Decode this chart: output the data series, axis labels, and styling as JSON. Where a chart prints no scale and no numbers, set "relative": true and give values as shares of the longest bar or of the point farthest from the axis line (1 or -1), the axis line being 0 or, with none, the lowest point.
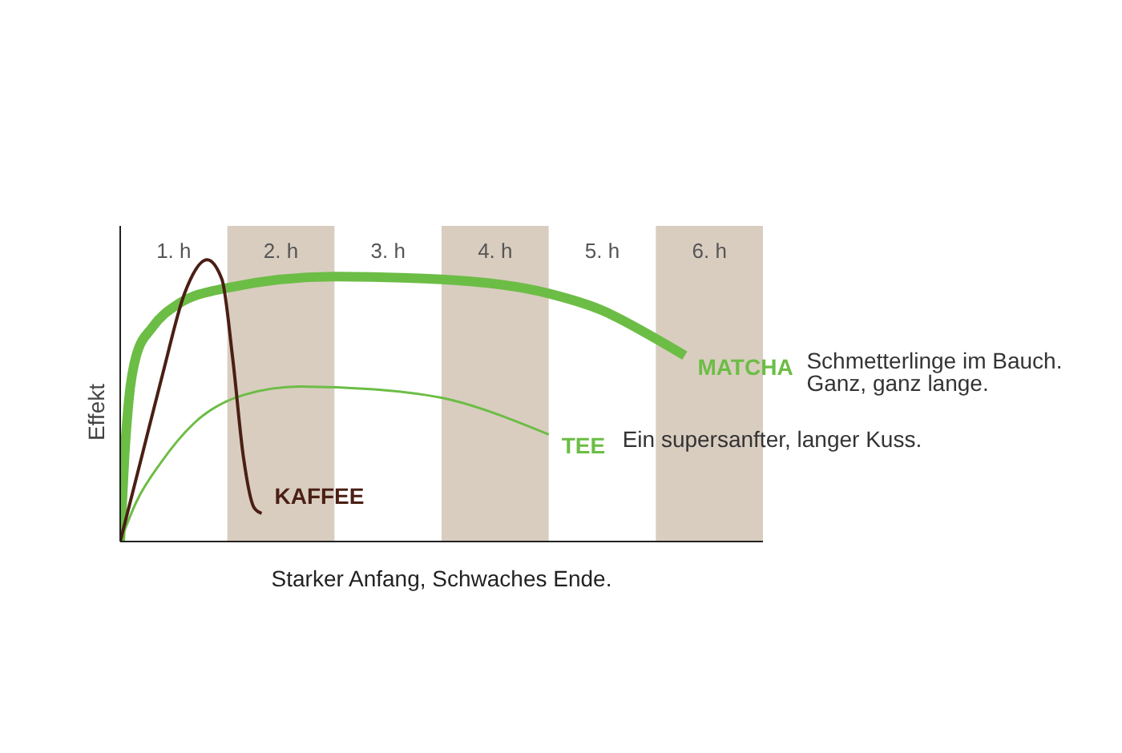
{
  "chart_data": {
    "type": "line",
    "relative": true,
    "xlabel": "Starker Anfang, Schwaches Ende.",
    "ylabel": "Effekt",
    "xlim": [
      0,
      6
    ],
    "tick_labels": "x",
    "marker": "none",
    "xticks": [
      {
        "value": 0.5,
        "label": "1. h"
      },
      {
        "value": 1.5,
        "label": "2. h"
      },
      {
        "value": 2.5,
        "label": "3. h"
      },
      {
        "value": 3.5,
        "label": "4. h"
      },
      {
        "value": 4.5,
        "label": "5. h"
      },
      {
        "value": 5.5,
        "label": "6. h"
      }
    ],
    "bands": [
      {
        "axis": "x",
        "from": 1,
        "to": 2,
        "color": "#d9cdc0"
      },
      {
        "axis": "x",
        "from": 3,
        "to": 4,
        "color": "#d9cdc0"
      },
      {
        "axis": "x",
        "from": 5,
        "to": 6,
        "color": "#d9cdc0"
      }
    ],
    "series": [
      {
        "name": "MATCHA",
        "color": "#6cbd45",
        "x": [
          0,
          0.04,
          0.08,
          0.15,
          0.3,
          0.53,
          1.0,
          2.0,
          3.0,
          4.0,
          4.5,
          5.0,
          5.27
        ],
        "values": [
          0,
          0.3,
          0.5,
          0.66,
          0.76,
          0.84,
          0.9,
          0.94,
          0.93,
          0.88,
          0.82,
          0.72,
          0.66
        ]
      },
      {
        "name": "TEE",
        "color": "#6cbd45",
        "x": [
          0,
          0.15,
          0.38,
          0.69,
          1.15,
          1.68,
          2.37,
          3.0,
          4.0
        ],
        "values": [
          0,
          0.14,
          0.28,
          0.42,
          0.52,
          0.55,
          0.54,
          0.51,
          0.38
        ]
      },
      {
        "name": "KAFFEE",
        "color": "#4a1f14",
        "x": [
          0,
          0.2,
          0.4,
          0.6,
          0.81,
          0.95,
          1.05,
          1.15,
          1.25,
          1.32
        ],
        "values": [
          0,
          0.3,
          0.6,
          0.88,
          1,
          0.93,
          0.65,
          0.3,
          0.12,
          0.1
        ]
      }
    ],
    "annotations": [
      "Schmetterlinge im Bauch. Ganz, ganz lange.",
      "Ein supersanfter, langer Kuss."
    ]
  }
}
